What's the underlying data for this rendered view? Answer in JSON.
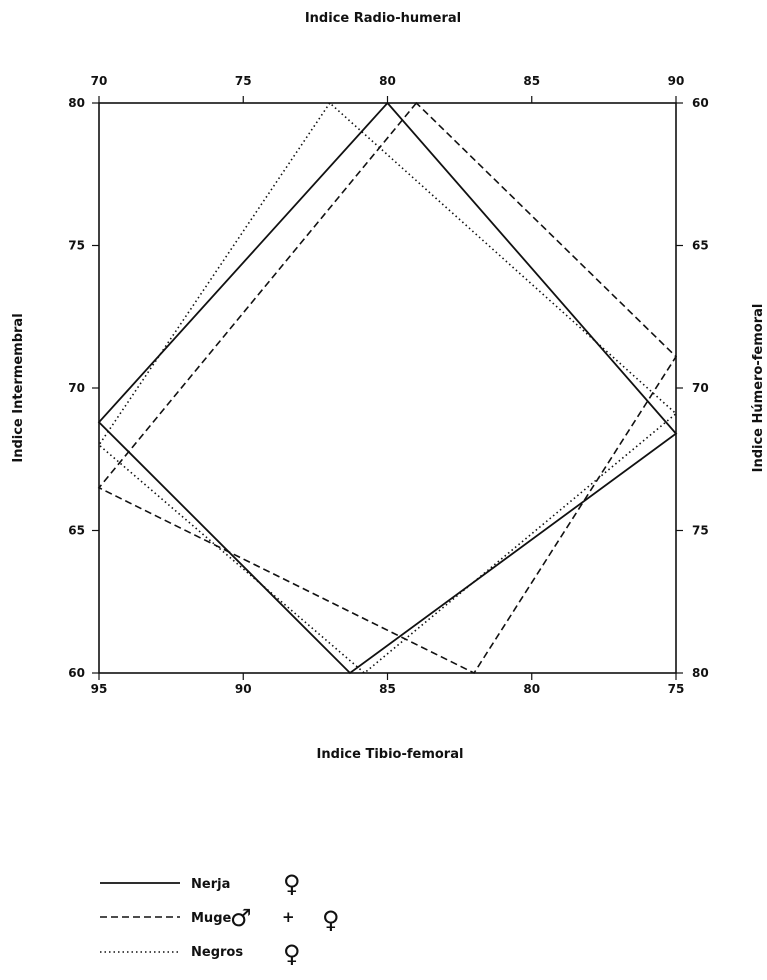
{
  "chart_data": {
    "type": "line",
    "axes": {
      "top": {
        "label": "Indice  Radio-humeral",
        "ticks": [
          "70",
          "75",
          "80",
          "85",
          "90"
        ],
        "range": [
          70,
          90
        ]
      },
      "bottom": {
        "label": "Indice  Tibio-femoral",
        "ticks": [
          "95",
          "90",
          "85",
          "80",
          "75"
        ],
        "range": [
          95,
          75
        ]
      },
      "left": {
        "label": "Indice  Intermembral",
        "ticks": [
          "80",
          "75",
          "70",
          "65",
          "60"
        ],
        "range": [
          60,
          80
        ]
      },
      "right": {
        "label": "Indice  Húmero-femoral",
        "ticks": [
          "60",
          "65",
          "70",
          "75",
          "80"
        ],
        "range": [
          80,
          60
        ]
      }
    },
    "series": [
      {
        "name": "Nerja",
        "sex": "♀",
        "style": "solid",
        "radio_humeral": 80.0,
        "intermembral": 68.8,
        "tibio_femoral": 86.3,
        "humero_femoral": 71.6
      },
      {
        "name": "Muge",
        "sex": "♂ + ♀",
        "style": "dashed",
        "radio_humeral": 81.0,
        "intermembral": 66.5,
        "tibio_femoral": 82.0,
        "humero_femoral": 68.9
      },
      {
        "name": "Negros",
        "sex": "♀",
        "style": "dotted",
        "radio_humeral": 78.0,
        "intermembral": 68.0,
        "tibio_femoral": 85.8,
        "humero_femoral": 70.9
      }
    ],
    "grid": false,
    "legend_position": "bottom-left"
  },
  "legend": [
    {
      "label": "Nerja",
      "symbols": [
        "♀"
      ]
    },
    {
      "label": "Muge",
      "symbols": [
        "♂",
        "+",
        "♀"
      ]
    },
    {
      "label": "Negros",
      "symbols": [
        "♀"
      ]
    }
  ],
  "colors": {
    "ink": "#111111",
    "background": "#ffffff"
  }
}
